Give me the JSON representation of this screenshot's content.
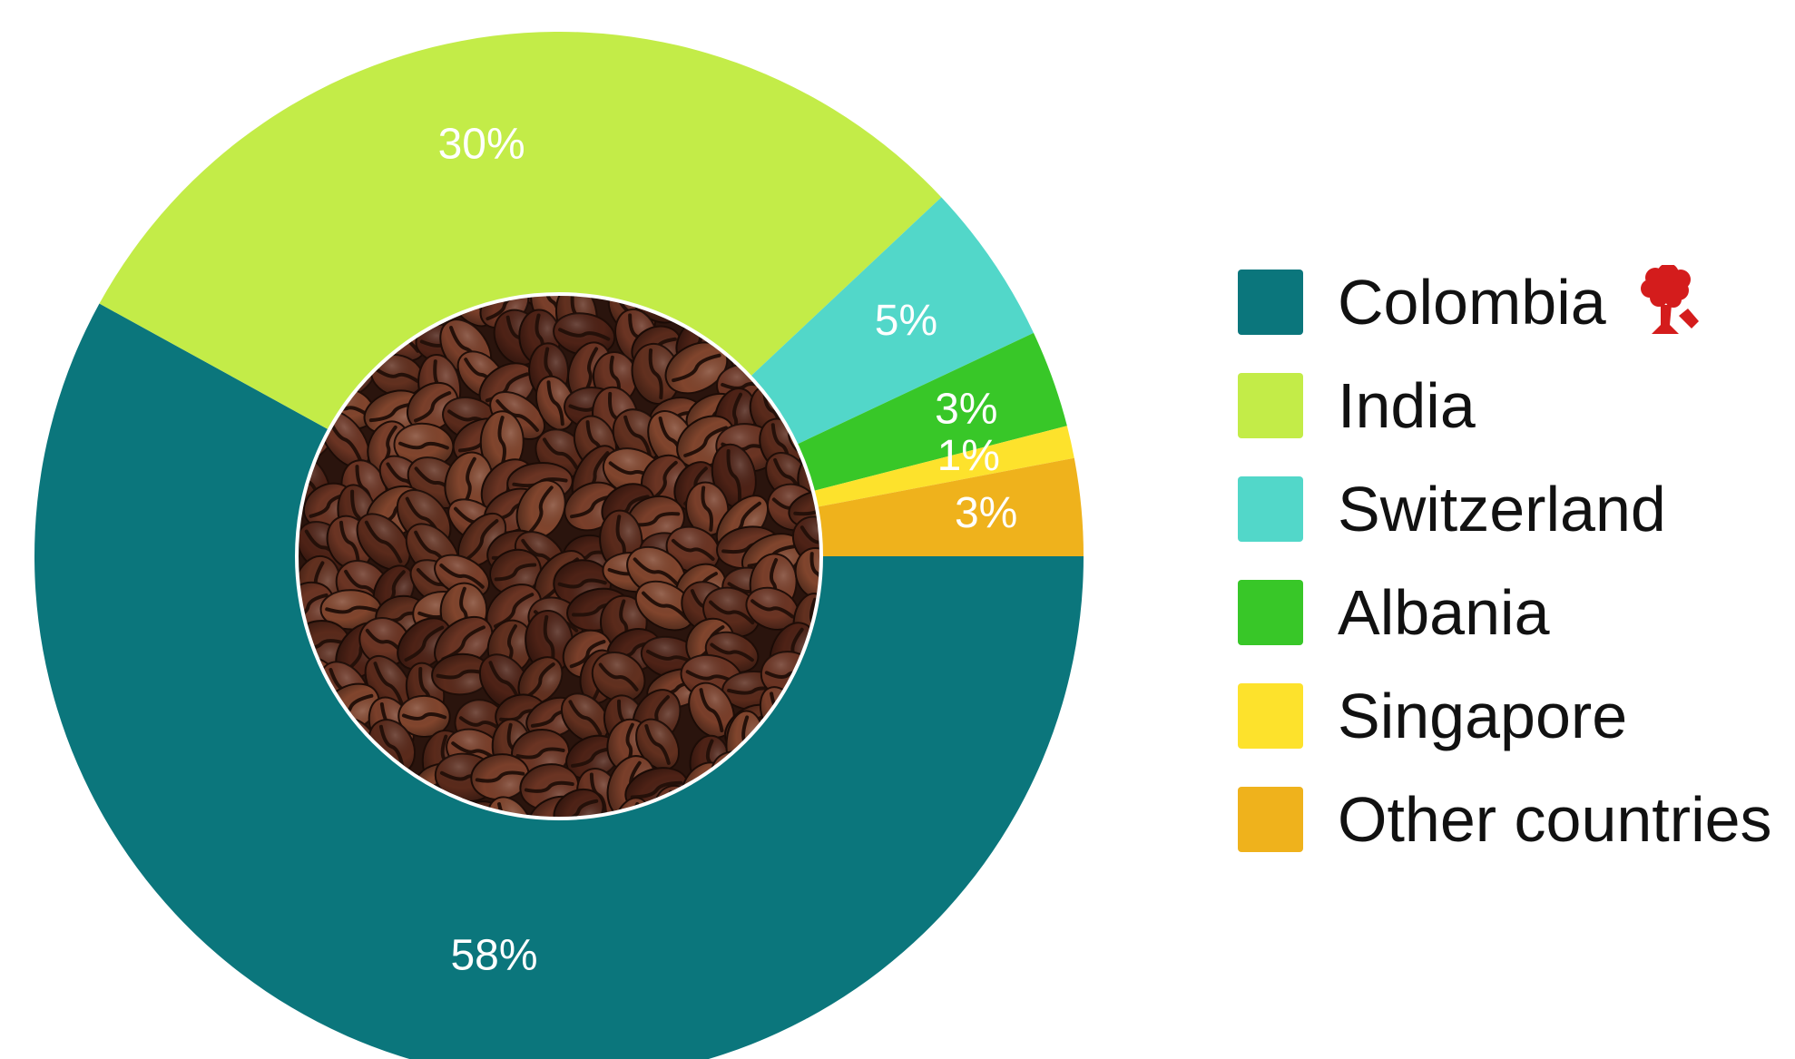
{
  "chart_data": {
    "type": "pie",
    "variant": "donut",
    "title": "",
    "center_image": "coffee-beans-photo",
    "categories": [
      "Colombia",
      "India",
      "Switzerland",
      "Albania",
      "Singapore",
      "Other countries"
    ],
    "values": [
      58,
      30,
      5,
      3,
      1,
      3
    ],
    "labels": [
      "58%",
      "30%",
      "5%",
      "3%",
      "1%",
      "3%"
    ],
    "colors": [
      "#0b767c",
      "#c3ec48",
      "#52d7c9",
      "#38c728",
      "#fde22c",
      "#efb21c"
    ],
    "start_angle": "3 o'clock",
    "direction": "clockwise",
    "legend": "right"
  },
  "legend": {
    "items": [
      {
        "label": "Colombia",
        "color": "#0b767c",
        "icon": "mushroom-cloud-logo-icon"
      },
      {
        "label": "India",
        "color": "#c3ec48"
      },
      {
        "label": "Switzerland",
        "color": "#52d7c9"
      },
      {
        "label": "Albania",
        "color": "#38c728"
      },
      {
        "label": "Singapore",
        "color": "#fde22c"
      },
      {
        "label": "Other countries",
        "color": "#efb21c"
      }
    ]
  },
  "logo_color": "#d41c1c",
  "beans": {
    "background": "#2a140d",
    "colors": [
      "#6b3423",
      "#5a2a1b",
      "#7a3f2a",
      "#4e2216",
      "#81452d",
      "#62301f"
    ]
  }
}
